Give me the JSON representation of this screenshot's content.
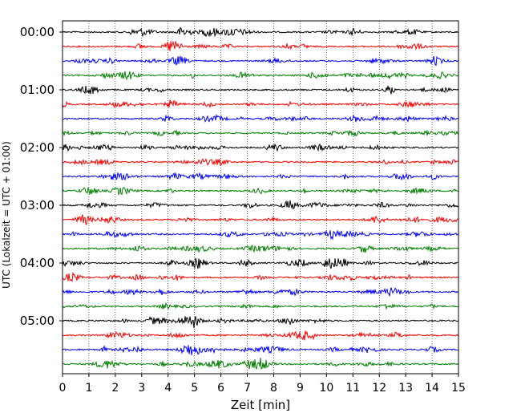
{
  "chart_data": {
    "type": "line",
    "subtype": "helicorder",
    "title": "",
    "xlabel": "Zeit  [min]",
    "ylabel": "UTC (Lokalzeit = UTC + 01:00)",
    "xlim": [
      0,
      15
    ],
    "x_ticks": [
      0,
      1,
      2,
      3,
      4,
      5,
      6,
      7,
      8,
      9,
      10,
      11,
      12,
      13,
      14,
      15
    ],
    "x_tick_labels": [
      "0",
      "1",
      "2",
      "3",
      "4",
      "5",
      "6",
      "7",
      "8",
      "9",
      "10",
      "11",
      "12",
      "13",
      "14",
      "15"
    ],
    "y_tick_labels": [
      "00:00",
      "01:00",
      "02:00",
      "03:00",
      "04:00",
      "05:00"
    ],
    "row_minutes": 15,
    "row_count": 24,
    "trace_colors": [
      "#000000",
      "#ff0000",
      "#0000ff",
      "#008000"
    ],
    "vertical_grid": "dotted",
    "legend": "none"
  }
}
